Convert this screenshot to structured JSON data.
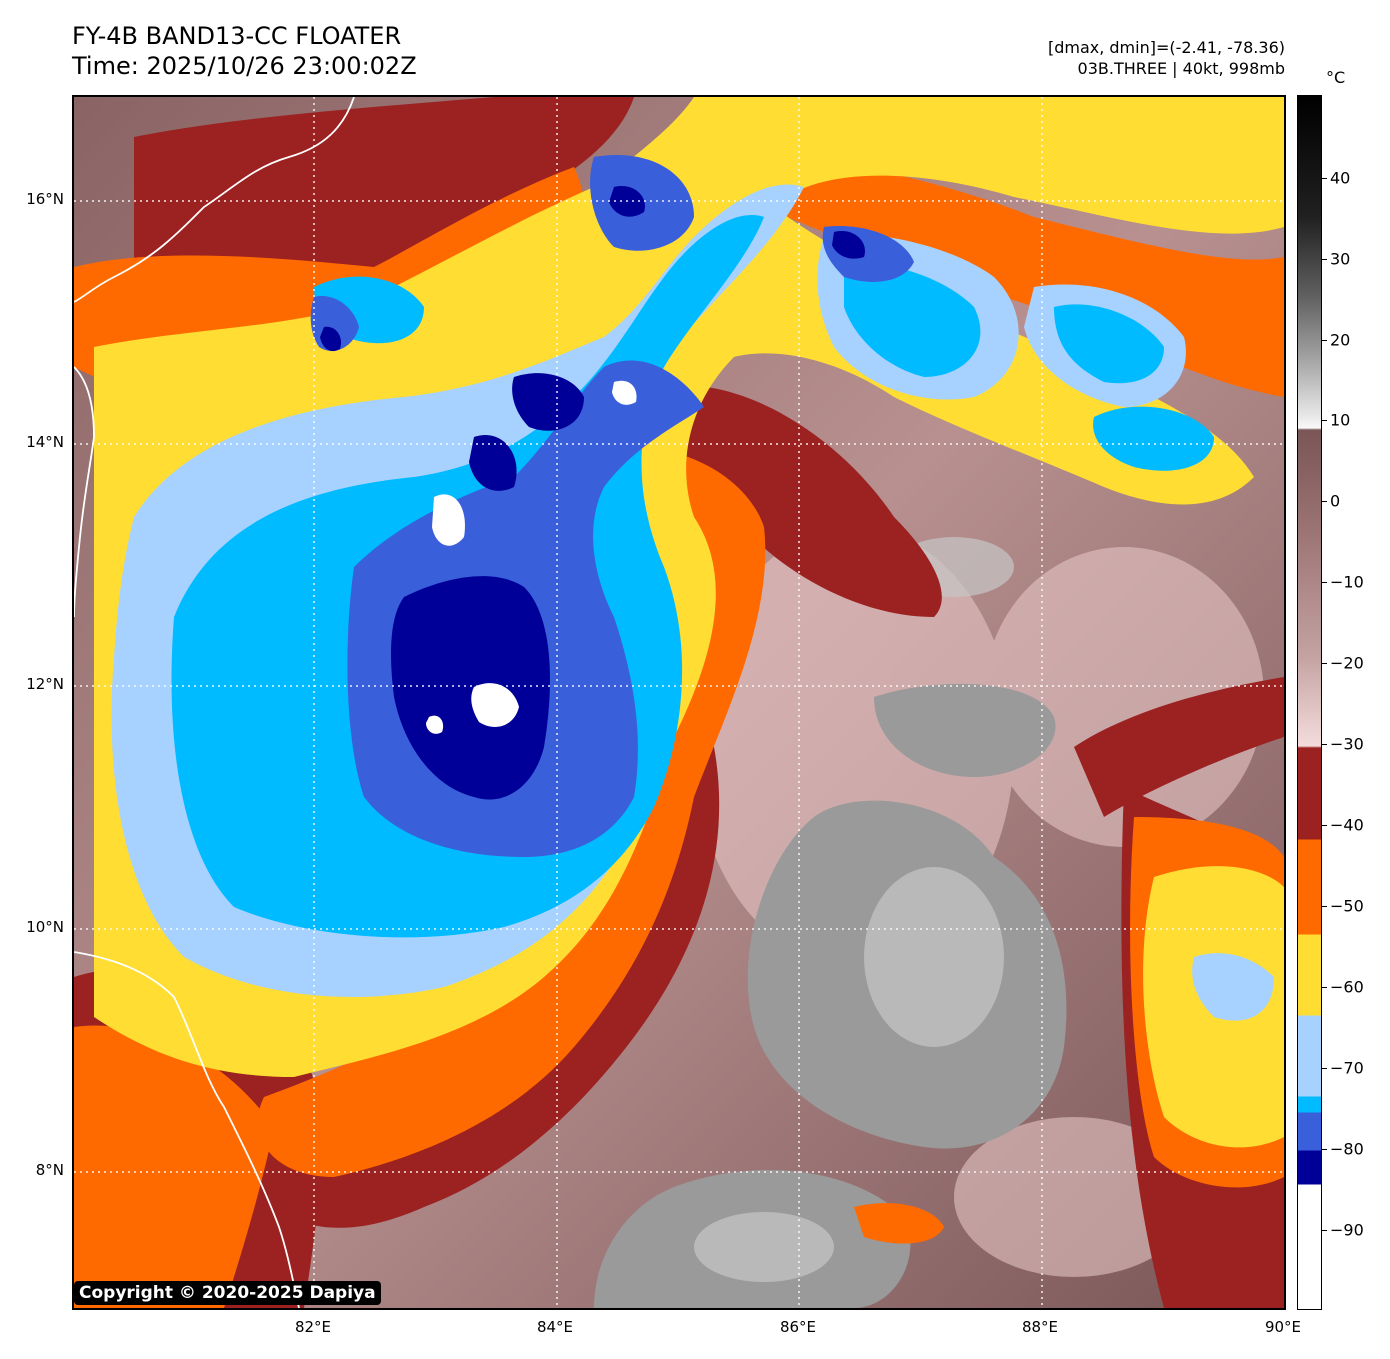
{
  "header": {
    "title": "FY-4B BAND13-CC FLOATER",
    "time": "Time: 2025/10/26 23:00:02Z",
    "dmax_dmin": "[dmax, dmin]=(-2.41, -78.36)",
    "storm": "03B.THREE | 40kt, 998mb"
  },
  "map": {
    "lat_labels": [
      "16°N",
      "14°N",
      "12°N",
      "10°N",
      "8°N"
    ],
    "lon_labels": [
      "82°E",
      "84°E",
      "86°E",
      "88°E",
      "90°E"
    ],
    "coastline_color": "#ffffff",
    "grid": true
  },
  "colorbar": {
    "unit": "°C",
    "ticks": [
      "40",
      "30",
      "20",
      "10",
      "0",
      "−10",
      "−20",
      "−30",
      "−40",
      "−50",
      "−60",
      "−70",
      "−80",
      "−90"
    ],
    "colors": {
      "above_10": "grayscale",
      "10_to_-30": "brown-to-pink",
      "-30_to-40": "#9c2121",
      "-40_to-50": "#ff6a00",
      "-50_to-60": "#ffdd33",
      "-60_to-70": "#a7d2ff",
      "-70_to-80": "#00bbff",
      "-80_to-85": "#3a5fdb",
      "-85_to-88": "#000099",
      "below-88": "#ffffff"
    }
  },
  "footer": {
    "copyright": "Copyright © 2020-2025 Dapiya"
  }
}
